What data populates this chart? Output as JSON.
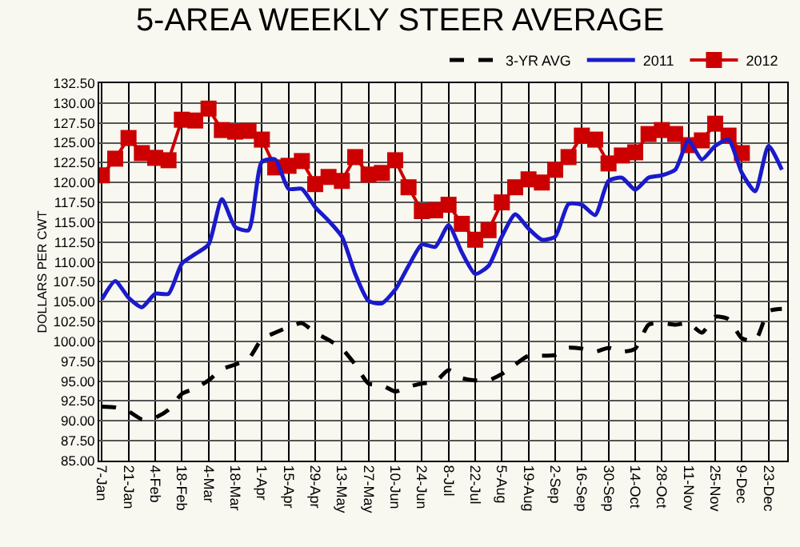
{
  "chart_data": {
    "type": "line",
    "title": "5-AREA WEEKLY STEER AVERAGE",
    "ylabel": "DOLLARS PER CWT",
    "categories": [
      "7-Jan",
      null,
      "21-Jan",
      null,
      "4-Feb",
      null,
      "18-Feb",
      null,
      "4-Mar",
      null,
      "18-Mar",
      null,
      "1-Apr",
      null,
      "15-Apr",
      null,
      "29-Apr",
      null,
      "13-May",
      null,
      "27-May",
      null,
      "10-Jun",
      null,
      "24-Jun",
      null,
      "8-Jul",
      null,
      "22-Jul",
      null,
      "5-Aug",
      null,
      "19-Aug",
      null,
      "2-Sep",
      null,
      "16-Sep",
      null,
      "30-Sep",
      null,
      "14-Oct",
      null,
      "28-Oct",
      null,
      "11-Nov",
      null,
      "25-Nov",
      null,
      "9-Dec",
      null,
      "23-Dec",
      null
    ],
    "series": [
      {
        "name": "3-YR AVG",
        "color": "#000000",
        "line_style": "dashed",
        "marker": "none",
        "values": [
          91.8,
          91.7,
          91.2,
          90.2,
          90.4,
          91.4,
          93.4,
          94.1,
          95.1,
          96.5,
          97.1,
          97.8,
          100.3,
          101.1,
          101.8,
          102.3,
          101.1,
          100.2,
          99.1,
          97.1,
          94.7,
          94.5,
          93.7,
          94.3,
          94.7,
          94.9,
          96.4,
          95.4,
          95.1,
          95.1,
          95.9,
          97.1,
          98.2,
          98.2,
          98.3,
          99.2,
          99.1,
          98.7,
          99.2,
          98.7,
          99.1,
          102.1,
          102.3,
          102.1,
          102.3,
          101.1,
          103.1,
          102.8,
          100.4,
          100.1,
          103.8,
          104.1
        ]
      },
      {
        "name": "2011",
        "color": "#1a1acc",
        "line_style": "solid",
        "marker": "none",
        "values": [
          105.3,
          107.6,
          105.5,
          104.3,
          106.0,
          106.0,
          109.8,
          111.0,
          112.2,
          117.9,
          114.4,
          114.0,
          122.6,
          122.9,
          119.2,
          119.2,
          116.9,
          115.2,
          113.2,
          108.5,
          105.1,
          104.8,
          106.5,
          109.5,
          112.2,
          111.9,
          114.6,
          111.2,
          108.5,
          109.5,
          113.2,
          116.0,
          114.2,
          112.8,
          113.2,
          117.3,
          117.2,
          115.9,
          120.2,
          120.6,
          119.1,
          120.6,
          120.9,
          121.6,
          125.3,
          122.9,
          124.6,
          125.4,
          121.2,
          118.9,
          124.6,
          121.6
        ]
      },
      {
        "name": "2012",
        "color": "#cc0000",
        "line_style": "solid",
        "marker": "square",
        "values": [
          120.9,
          123.0,
          125.6,
          123.7,
          123.1,
          122.8,
          127.9,
          127.8,
          129.3,
          126.6,
          126.4,
          126.5,
          125.4,
          121.9,
          122.1,
          122.7,
          119.8,
          120.7,
          120.2,
          123.2,
          121.0,
          121.2,
          122.8,
          119.4,
          116.4,
          116.5,
          117.2,
          114.8,
          112.8,
          114.0,
          117.5,
          119.4,
          120.4,
          120.0,
          121.6,
          123.2,
          125.9,
          125.4,
          122.4,
          123.4,
          123.8,
          126.1,
          126.6,
          126.1,
          124.7,
          125.3,
          127.4,
          125.9,
          123.7,
          null,
          null,
          null
        ]
      }
    ],
    "ylim": [
      85,
      132.5
    ],
    "yticks": [
      {
        "value": 85,
        "label": "85.00"
      },
      {
        "value": 87.5,
        "label": "87.50"
      },
      {
        "value": 90,
        "label": "90.00"
      },
      {
        "value": 92.5,
        "label": "92.50"
      },
      {
        "value": 95,
        "label": "95.00"
      },
      {
        "value": 97.5,
        "label": "97.50"
      },
      {
        "value": 100,
        "label": "100.00"
      },
      {
        "value": 102.5,
        "label": "102.50"
      },
      {
        "value": 105,
        "label": "105.00"
      },
      {
        "value": 107.5,
        "label": "107.50"
      },
      {
        "value": 110,
        "label": "110.00"
      },
      {
        "value": 112.5,
        "label": "112.50"
      },
      {
        "value": 115,
        "label": "115.00"
      },
      {
        "value": 117.5,
        "label": "117.50"
      },
      {
        "value": 120,
        "label": "120.00"
      },
      {
        "value": 122.5,
        "label": "122.50"
      },
      {
        "value": 125,
        "label": "125.00"
      },
      {
        "value": 127.5,
        "label": "127.50"
      },
      {
        "value": 130,
        "label": "130.00"
      },
      {
        "value": 132.5,
        "label": "132.50"
      }
    ],
    "grid": true,
    "legend": "top right"
  }
}
